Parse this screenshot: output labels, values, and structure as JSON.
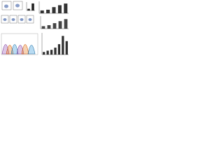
{
  "chart_data": [
    {
      "type": "bar",
      "values": [
        1,
        4.2
      ],
      "color": "#222222",
      "ylim": [
        0,
        5
      ]
    },
    {
      "type": "bar",
      "values": [
        1.2,
        1.5,
        2.6,
        3.4,
        4.1
      ],
      "color": "#333333",
      "ylim": [
        0,
        5
      ]
    },
    {
      "type": "bar",
      "values": [
        1,
        1.4,
        2.2,
        3.0,
        3.8
      ],
      "color": "#444444",
      "ylim": [
        0,
        5
      ]
    },
    {
      "type": "bar",
      "values": [
        0.6,
        0.9,
        1.1,
        1.6,
        2.4,
        4.3,
        3.1
      ],
      "color": "#2f2f2f",
      "ylim": [
        0,
        5
      ]
    }
  ]
}
